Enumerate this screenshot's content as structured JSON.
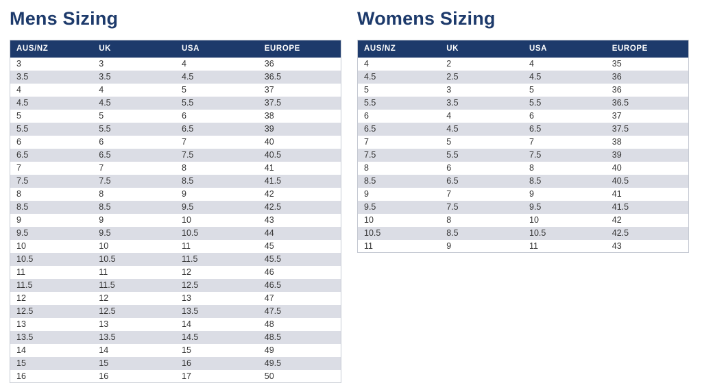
{
  "colors": {
    "accent_navy": "#1d3a6b",
    "header_bg": "#1d3a6b",
    "header_text": "#ffffff",
    "row_bg": "#ffffff",
    "row_alt_bg": "#dbdde5",
    "cell_text": "#333333",
    "table_border": "#c5c9d2"
  },
  "mens": {
    "title": "Mens Sizing",
    "columns": [
      "AUS/NZ",
      "UK",
      "USA",
      "EUROPE"
    ],
    "rows": [
      [
        "3",
        "3",
        "4",
        "36"
      ],
      [
        "3.5",
        "3.5",
        "4.5",
        "36.5"
      ],
      [
        "4",
        "4",
        "5",
        "37"
      ],
      [
        "4.5",
        "4.5",
        "5.5",
        "37.5"
      ],
      [
        "5",
        "5",
        "6",
        "38"
      ],
      [
        "5.5",
        "5.5",
        "6.5",
        "39"
      ],
      [
        "6",
        "6",
        "7",
        "40"
      ],
      [
        "6.5",
        "6.5",
        "7.5",
        "40.5"
      ],
      [
        "7",
        "7",
        "8",
        "41"
      ],
      [
        "7.5",
        "7.5",
        "8.5",
        "41.5"
      ],
      [
        "8",
        "8",
        "9",
        "42"
      ],
      [
        "8.5",
        "8.5",
        "9.5",
        "42.5"
      ],
      [
        "9",
        "9",
        "10",
        "43"
      ],
      [
        "9.5",
        "9.5",
        "10.5",
        "44"
      ],
      [
        "10",
        "10",
        "11",
        "45"
      ],
      [
        "10.5",
        "10.5",
        "11.5",
        "45.5"
      ],
      [
        "11",
        "11",
        "12",
        "46"
      ],
      [
        "11.5",
        "11.5",
        "12.5",
        "46.5"
      ],
      [
        "12",
        "12",
        "13",
        "47"
      ],
      [
        "12.5",
        "12.5",
        "13.5",
        "47.5"
      ],
      [
        "13",
        "13",
        "14",
        "48"
      ],
      [
        "13.5",
        "13.5",
        "14.5",
        "48.5"
      ],
      [
        "14",
        "14",
        "15",
        "49"
      ],
      [
        "15",
        "15",
        "16",
        "49.5"
      ],
      [
        "16",
        "16",
        "17",
        "50"
      ]
    ]
  },
  "womens": {
    "title": "Womens Sizing",
    "columns": [
      "AUS/NZ",
      "UK",
      "USA",
      "EUROPE"
    ],
    "rows": [
      [
        "4",
        "2",
        "4",
        "35"
      ],
      [
        "4.5",
        "2.5",
        "4.5",
        "36"
      ],
      [
        "5",
        "3",
        "5",
        "36"
      ],
      [
        "5.5",
        "3.5",
        "5.5",
        "36.5"
      ],
      [
        "6",
        "4",
        "6",
        "37"
      ],
      [
        "6.5",
        "4.5",
        "6.5",
        "37.5"
      ],
      [
        "7",
        "5",
        "7",
        "38"
      ],
      [
        "7.5",
        "5.5",
        "7.5",
        "39"
      ],
      [
        "8",
        "6",
        "8",
        "40"
      ],
      [
        "8.5",
        "6.5",
        "8.5",
        "40.5"
      ],
      [
        "9",
        "7",
        "9",
        "41"
      ],
      [
        "9.5",
        "7.5",
        "9.5",
        "41.5"
      ],
      [
        "10",
        "8",
        "10",
        "42"
      ],
      [
        "10.5",
        "8.5",
        "10.5",
        "42.5"
      ],
      [
        "11",
        "9",
        "11",
        "43"
      ]
    ]
  }
}
